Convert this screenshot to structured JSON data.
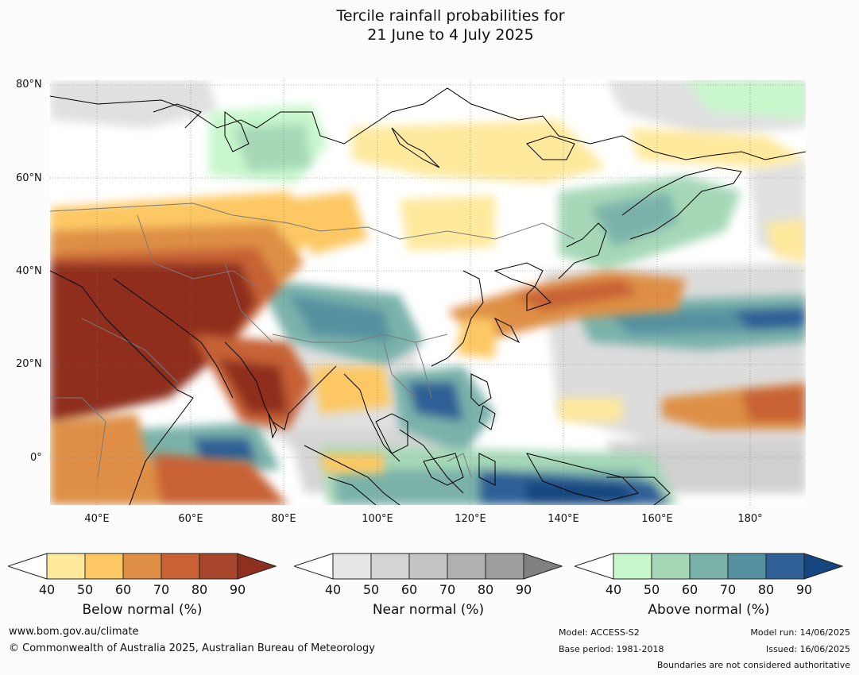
{
  "title_line1": "Tercile rainfall probabilities for",
  "title_line2": "21 June to 4 July 2025",
  "lat_labels": [
    "80°N",
    "60°N",
    "40°N",
    "20°N",
    "0°"
  ],
  "lon_labels": [
    "40°E",
    "60°E",
    "80°E",
    "100°E",
    "120°E",
    "140°E",
    "160°E",
    "180°"
  ],
  "colorbars": [
    {
      "label": "Below normal (%)",
      "ticks": [
        "40",
        "50",
        "60",
        "70",
        "80",
        "90"
      ],
      "low_color": "#ffffff",
      "colors": [
        "#fee99c",
        "#fdc864",
        "#de8f45",
        "#c86234",
        "#a8462c"
      ],
      "high_color": "#8f2f1f"
    },
    {
      "label": "Near normal (%)",
      "ticks": [
        "40",
        "50",
        "60",
        "70",
        "80",
        "90"
      ],
      "low_color": "#ffffff",
      "colors": [
        "#e6e6e6",
        "#d4d4d4",
        "#c4c4c4",
        "#b0b0b0",
        "#9e9e9e"
      ],
      "high_color": "#808080"
    },
    {
      "label": "Above normal (%)",
      "ticks": [
        "40",
        "50",
        "60",
        "70",
        "80",
        "90"
      ],
      "low_color": "#ffffff",
      "colors": [
        "#c8f7cc",
        "#a6d8b8",
        "#7ab2aa",
        "#5591a0",
        "#2f6096"
      ],
      "high_color": "#15467f"
    }
  ],
  "footer": {
    "website": "www.bom.gov.au/climate",
    "copyright": "© Commonwealth of Australia 2025, Australian Bureau of Meteorology",
    "model": "Model: ACCESS-S2",
    "base_period": "Base period: 1981-2018",
    "model_run": "Model run: 14/06/2025",
    "issued": "Issued: 16/06/2025",
    "boundaries": "Boundaries are not considered authoritative"
  },
  "map_colors": {
    "below_light": "#fee99c",
    "below_mid": "#fdc864",
    "below_orange": "#de8f45",
    "below_dark": "#c86234",
    "below_deep": "#8f2f1f",
    "near_light": "#e0e0e0",
    "near_mid": "#c8c8c8",
    "above_light": "#c8f7cc",
    "above_mid": "#7ab2aa",
    "above_dark": "#2f6096",
    "above_deep": "#15467f"
  }
}
